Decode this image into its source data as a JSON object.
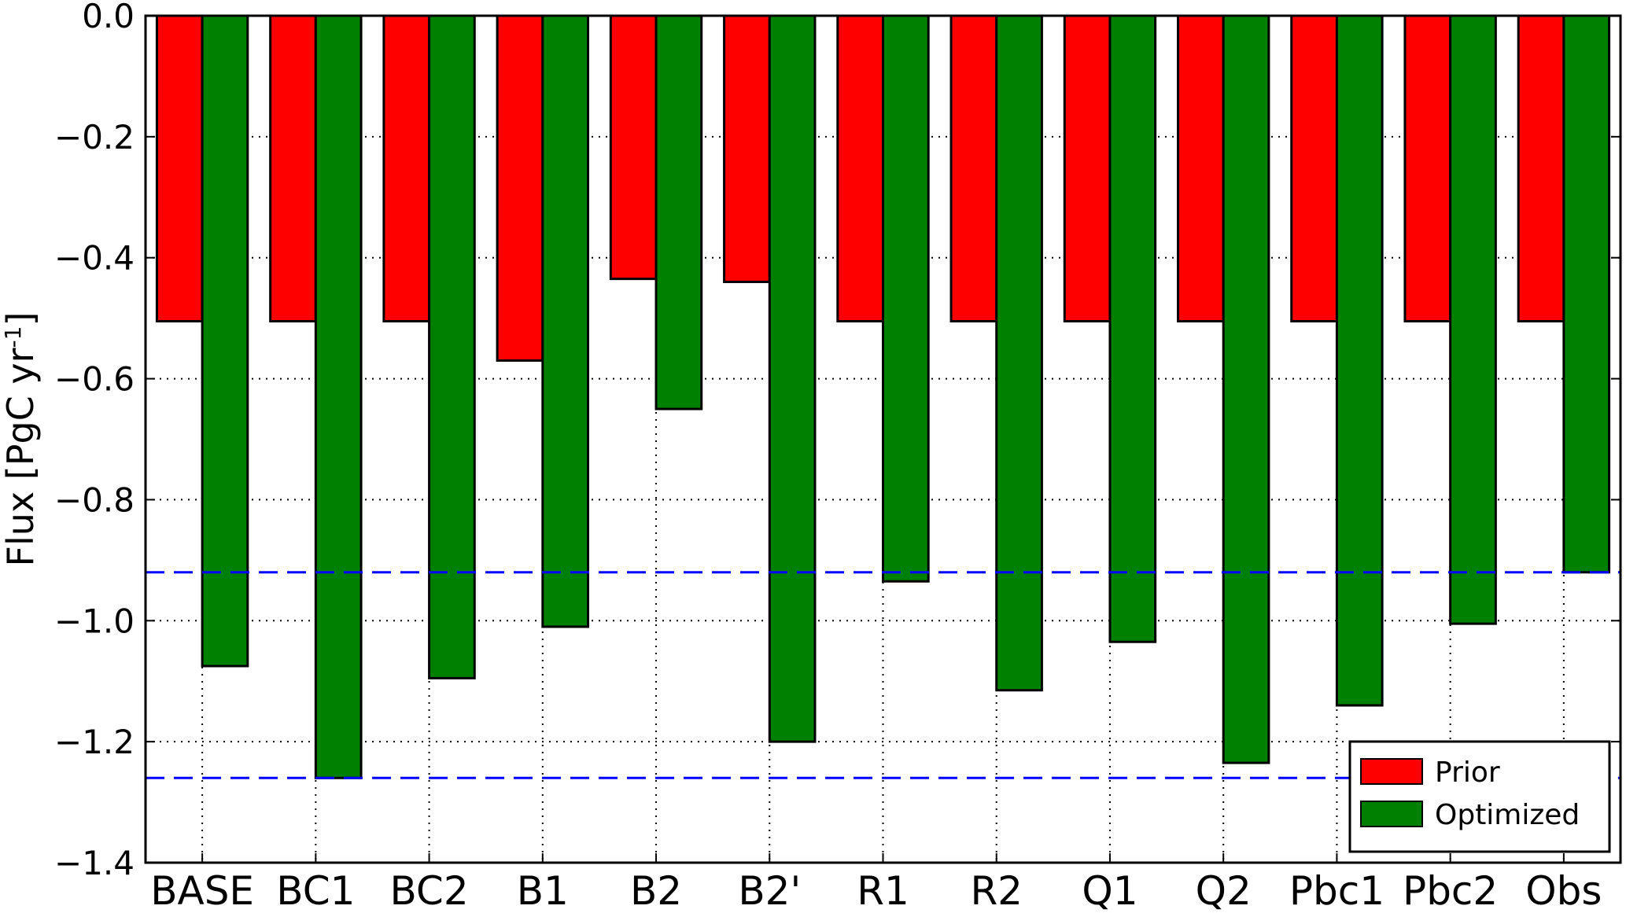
{
  "chart_data": {
    "type": "bar",
    "categories": [
      "BASE",
      "BC1",
      "BC2",
      "B1",
      "B2",
      "B2'",
      "R1",
      "R2",
      "Q1",
      "Q2",
      "Pbc1",
      "Pbc2",
      "Obs"
    ],
    "series": [
      {
        "name": "Prior",
        "color": "#ff0000",
        "values": [
          -0.505,
          -0.505,
          -0.505,
          -0.57,
          -0.435,
          -0.44,
          -0.505,
          -0.505,
          -0.505,
          -0.505,
          -0.505,
          -0.505,
          -0.505
        ]
      },
      {
        "name": "Optimized",
        "color": "#008000",
        "values": [
          -1.075,
          -1.26,
          -1.095,
          -1.01,
          -0.65,
          -1.2,
          -0.935,
          -1.115,
          -1.035,
          -1.235,
          -1.14,
          -1.005,
          -0.92
        ]
      }
    ],
    "reference_lines": [
      {
        "value": -0.92,
        "color": "#0000ff",
        "style": "dashed"
      },
      {
        "value": -1.26,
        "color": "#0000ff",
        "style": "dashed"
      }
    ],
    "ylabel": "Flux [PgC yr⁻¹]",
    "ylabel_main": "Flux [PgC yr",
    "ylabel_sup": "-1",
    "ylabel_end": "]",
    "xlabel": "",
    "title": "",
    "ylim": [
      -1.4,
      0.0
    ],
    "yticks": [
      0.0,
      -0.2,
      -0.4,
      -0.6,
      -0.8,
      -1.0,
      -1.2,
      -1.4
    ],
    "ytick_labels": [
      "0.0",
      "−0.2",
      "−0.4",
      "−0.6",
      "−0.8",
      "−1.0",
      "−1.2",
      "−1.4"
    ],
    "grid": true,
    "legend": {
      "position": "lower-right",
      "entries": [
        "Prior",
        "Optimized"
      ]
    }
  }
}
